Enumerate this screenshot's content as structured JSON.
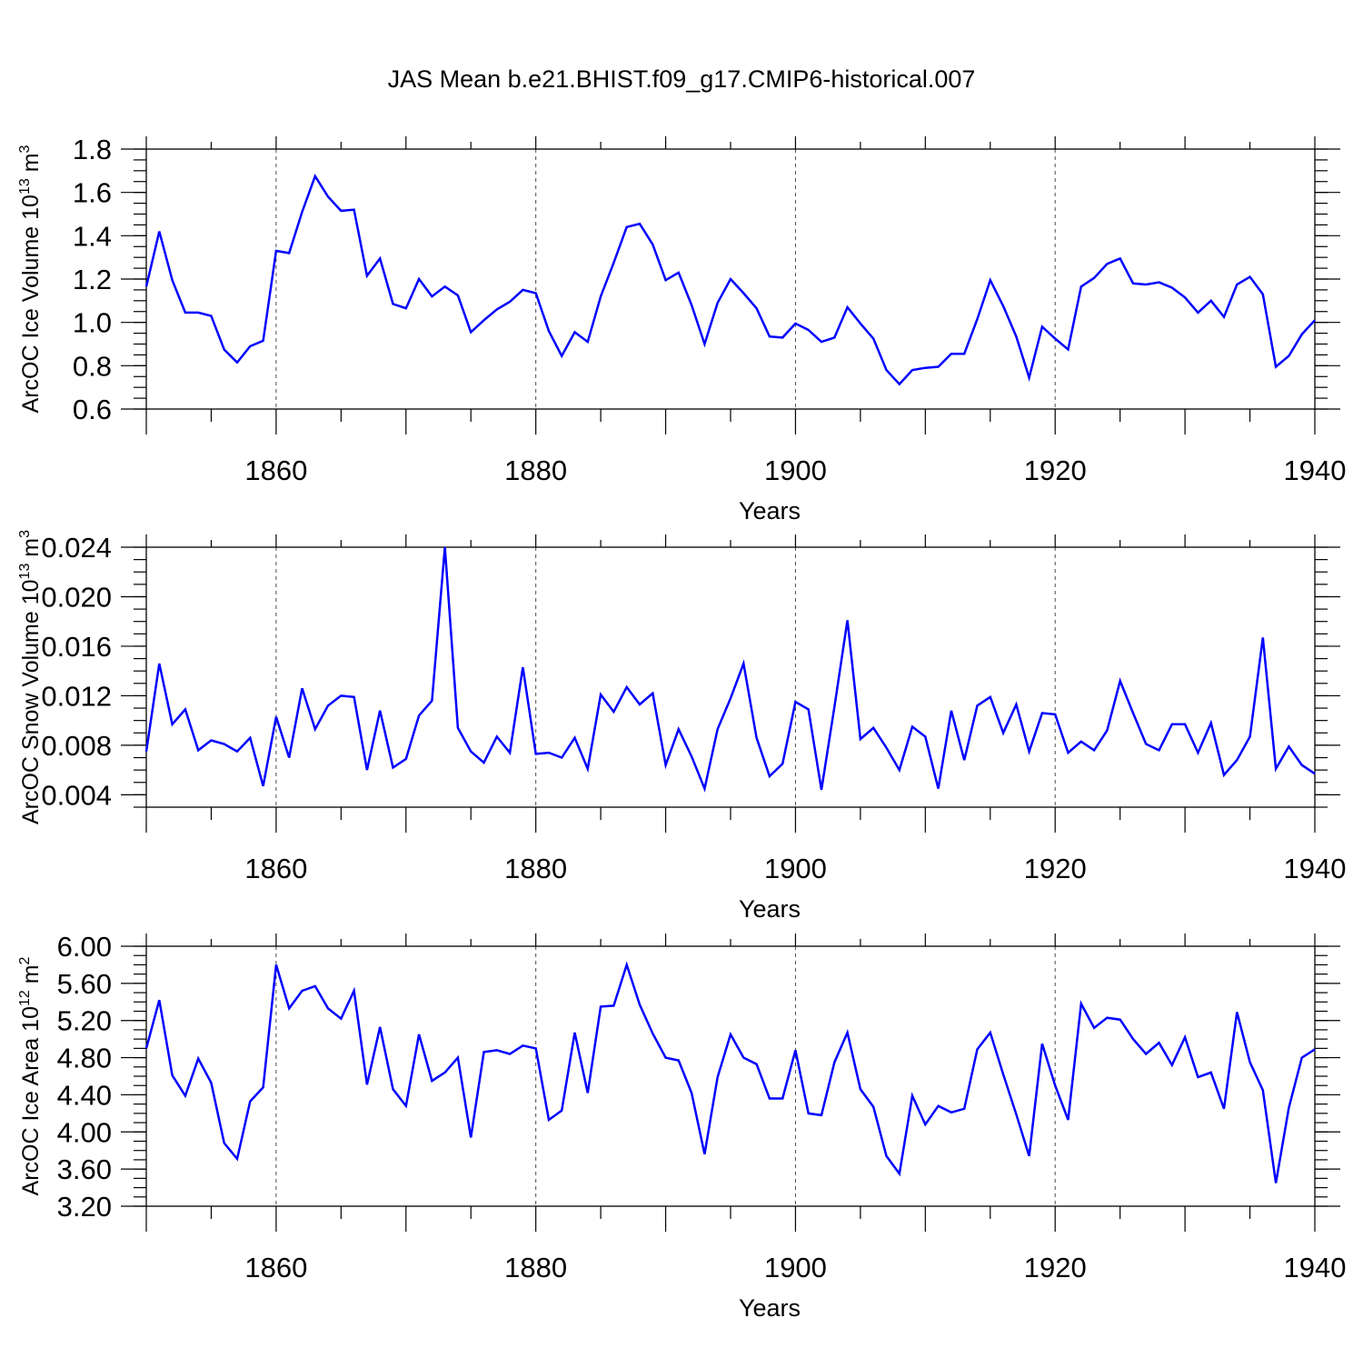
{
  "figure": {
    "title": "JAS Mean b.e21.BHIST.f09_g17.CMIP6-historical.007"
  },
  "chart_data": [
    {
      "type": "line",
      "title": "JAS Mean b.e21.BHIST.f09_g17.CMIP6-historical.007",
      "xlabel": "Years",
      "ylabel": "ArcOC Ice Volume 10",
      "ylabel_exponent": "13",
      "ylabel_unit": " m",
      "ylabel_unit_exponent": "3",
      "xlim": [
        1850,
        1940
      ],
      "ylim": [
        0.6,
        1.8
      ],
      "xticks": [
        1860,
        1880,
        1900,
        1920,
        1940
      ],
      "yticks": [
        "0.6",
        "0.8",
        "1.0",
        "1.2",
        "1.4",
        "1.6",
        "1.8"
      ],
      "ytick_values": [
        0.6,
        0.8,
        1.0,
        1.2,
        1.4,
        1.6,
        1.8
      ],
      "vgrid": [
        1860,
        1880,
        1900,
        1920
      ],
      "color": "#0000ff",
      "x_start": 1850,
      "values": [
        1.165,
        1.42,
        1.195,
        1.045,
        1.045,
        1.03,
        0.875,
        0.815,
        0.89,
        0.915,
        1.33,
        1.32,
        1.51,
        1.675,
        1.58,
        1.515,
        1.52,
        1.215,
        1.295,
        1.085,
        1.065,
        1.2,
        1.12,
        1.165,
        1.125,
        0.955,
        1.01,
        1.06,
        1.095,
        1.15,
        1.135,
        0.96,
        0.845,
        0.955,
        0.91,
        1.12,
        1.275,
        1.44,
        1.455,
        1.36,
        1.195,
        1.23,
        1.08,
        0.9,
        1.09,
        1.2,
        1.135,
        1.065,
        0.935,
        0.93,
        0.995,
        0.965,
        0.91,
        0.93,
        1.07,
        0.995,
        0.925,
        0.78,
        0.715,
        0.78,
        0.79,
        0.795,
        0.855,
        0.855,
        1.015,
        1.195,
        1.075,
        0.935,
        0.745,
        0.98,
        0.925,
        0.875,
        1.165,
        1.205,
        1.27,
        1.295,
        1.18,
        1.175,
        1.185,
        1.16,
        1.115,
        1.045,
        1.1,
        1.025,
        1.175,
        1.21,
        1.13,
        0.795,
        0.845,
        0.945,
        1.01
      ]
    },
    {
      "type": "line",
      "xlabel": "Years",
      "ylabel": "ArcOC Snow Volume 10",
      "ylabel_exponent": "13",
      "ylabel_unit": " m",
      "ylabel_unit_exponent": "3",
      "xlim": [
        1850,
        1940
      ],
      "ylim": [
        0.003,
        0.024
      ],
      "xticks": [
        1860,
        1880,
        1900,
        1920,
        1940
      ],
      "yticks": [
        "0.004",
        "0.008",
        "0.012",
        "0.016",
        "0.020",
        "0.024"
      ],
      "ytick_values": [
        0.004,
        0.008,
        0.012,
        0.016,
        0.02,
        0.024
      ],
      "vgrid": [
        1860,
        1880,
        1900,
        1920
      ],
      "color": "#0000ff",
      "x_start": 1850,
      "values": [
        0.0075,
        0.0146,
        0.0097,
        0.0109,
        0.0076,
        0.0084,
        0.0081,
        0.0075,
        0.0086,
        0.0047,
        0.0103,
        0.007,
        0.0126,
        0.0093,
        0.0112,
        0.012,
        0.0119,
        0.006,
        0.0108,
        0.0062,
        0.0069,
        0.0104,
        0.0116,
        0.024,
        0.0094,
        0.0075,
        0.0066,
        0.0087,
        0.0074,
        0.0143,
        0.0073,
        0.0074,
        0.007,
        0.0086,
        0.0061,
        0.0121,
        0.0107,
        0.0127,
        0.0113,
        0.0122,
        0.0064,
        0.0093,
        0.0071,
        0.0045,
        0.0093,
        0.0118,
        0.0146,
        0.0086,
        0.0055,
        0.0065,
        0.0115,
        0.0109,
        0.0044,
        0.0111,
        0.0181,
        0.0085,
        0.0094,
        0.0078,
        0.006,
        0.0095,
        0.0087,
        0.0045,
        0.0108,
        0.0068,
        0.0112,
        0.0119,
        0.009,
        0.0113,
        0.0075,
        0.0106,
        0.0105,
        0.0074,
        0.0083,
        0.0076,
        0.0092,
        0.0132,
        0.0106,
        0.0081,
        0.0076,
        0.0097,
        0.0097,
        0.0074,
        0.0098,
        0.0056,
        0.0068,
        0.0087,
        0.0167,
        0.0061,
        0.0079,
        0.0064,
        0.0057
      ]
    },
    {
      "type": "line",
      "xlabel": "Years",
      "ylabel": "ArcOC Ice Area 10",
      "ylabel_exponent": "12",
      "ylabel_unit": " m",
      "ylabel_unit_exponent": "2",
      "xlim": [
        1850,
        1940
      ],
      "ylim": [
        3.2,
        6.0
      ],
      "xticks": [
        1860,
        1880,
        1900,
        1920,
        1940
      ],
      "yticks": [
        "3.20",
        "3.60",
        "4.00",
        "4.40",
        "4.80",
        "5.20",
        "5.60",
        "6.00"
      ],
      "ytick_values": [
        3.2,
        3.6,
        4.0,
        4.4,
        4.8,
        5.2,
        5.6,
        6.0
      ],
      "vgrid": [
        1860,
        1880,
        1900,
        1920
      ],
      "color": "#0000ff",
      "x_start": 1850,
      "values": [
        4.9,
        5.42,
        4.61,
        4.39,
        4.79,
        4.53,
        3.88,
        3.71,
        4.33,
        4.48,
        5.8,
        5.33,
        5.52,
        5.57,
        5.33,
        5.22,
        5.52,
        4.51,
        5.13,
        4.46,
        4.28,
        5.05,
        4.55,
        4.64,
        4.8,
        3.94,
        4.86,
        4.88,
        4.84,
        4.93,
        4.9,
        4.13,
        4.23,
        5.07,
        4.42,
        5.35,
        5.36,
        5.8,
        5.37,
        5.06,
        4.8,
        4.77,
        4.42,
        3.76,
        4.59,
        5.05,
        4.8,
        4.73,
        4.36,
        4.36,
        4.88,
        4.2,
        4.18,
        4.75,
        5.07,
        4.46,
        4.27,
        3.74,
        3.55,
        4.39,
        4.08,
        4.28,
        4.21,
        4.25,
        4.89,
        5.07,
        4.62,
        4.19,
        3.74,
        4.95,
        4.5,
        4.13,
        5.38,
        5.12,
        5.23,
        5.21,
        5.0,
        4.84,
        4.96,
        4.72,
        5.02,
        4.59,
        4.64,
        4.25,
        5.29,
        4.75,
        4.45,
        3.45,
        4.26,
        4.8,
        4.89
      ]
    }
  ]
}
